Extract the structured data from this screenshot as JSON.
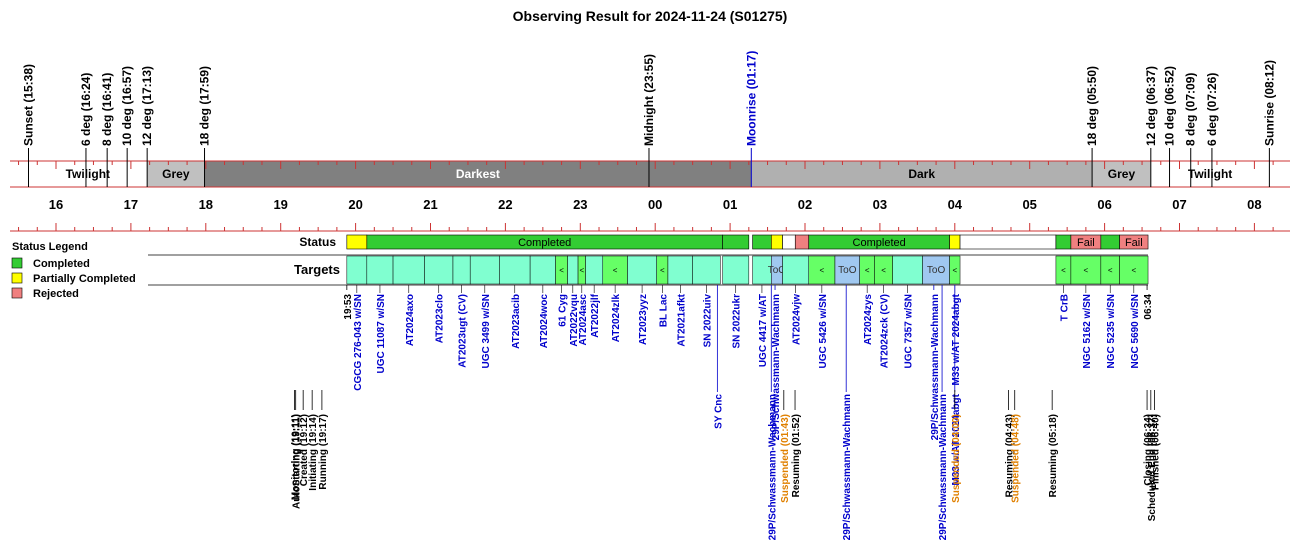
{
  "title": "Observing Result for 2024-11-24 (S01275)",
  "colors": {
    "completed": "#33cc33",
    "partial": "#ffff00",
    "rejected": "#f08080",
    "target_completed": "#66ff66",
    "target_ok": "#80ffd0",
    "too": "#a0c8f0",
    "twilight_band": "#ffffff",
    "grey_band": "#c0c0c0",
    "darkest_band": "#808080",
    "dark_band": "#b0b0b0",
    "axis_red": "#cc3333",
    "event_blue": "#0000cc",
    "suspended_orange": "#e08000"
  },
  "legend": {
    "title": "Status Legend",
    "items": [
      {
        "label": "Completed",
        "color": "#33cc33"
      },
      {
        "label": "Partially Completed",
        "color": "#ffff00"
      },
      {
        "label": "Rejected",
        "color": "#f08080"
      }
    ]
  },
  "row_labels": {
    "status": "Status",
    "targets": "Targets"
  },
  "chart_data": {
    "type": "timeline",
    "time_axis": {
      "start": 15.5,
      "end": 8.25,
      "ticks": [
        "16",
        "17",
        "18",
        "19",
        "20",
        "21",
        "22",
        "23",
        "00",
        "01",
        "02",
        "03",
        "04",
        "05",
        "06",
        "07",
        "08"
      ]
    },
    "top_markers": [
      {
        "label": "Sunset (15:38)",
        "t": 15.633,
        "color": "#000000"
      },
      {
        "label": "6 deg (16:24)",
        "t": 16.4,
        "color": "#000000"
      },
      {
        "label": "8 deg (16:41)",
        "t": 16.683,
        "color": "#000000"
      },
      {
        "label": "10 deg (16:57)",
        "t": 16.95,
        "color": "#000000"
      },
      {
        "label": "12 deg (17:13)",
        "t": 17.217,
        "color": "#000000"
      },
      {
        "label": "18 deg (17:59)",
        "t": 17.983,
        "color": "#000000"
      },
      {
        "label": "Midnight (23:55)",
        "t": 23.917,
        "color": "#000000"
      },
      {
        "label": "Moonrise (01:17)",
        "t": 25.283,
        "color": "#0000cc"
      },
      {
        "label": "18 deg (05:50)",
        "t": 29.833,
        "color": "#000000"
      },
      {
        "label": "12 deg (06:37)",
        "t": 30.617,
        "color": "#000000"
      },
      {
        "label": "10 deg (06:52)",
        "t": 30.867,
        "color": "#000000"
      },
      {
        "label": "8 deg (07:09)",
        "t": 31.15,
        "color": "#000000"
      },
      {
        "label": "6 deg (07:26)",
        "t": 31.433,
        "color": "#000000"
      },
      {
        "label": "Sunrise (08:12)",
        "t": 32.2,
        "color": "#000000"
      }
    ],
    "bands": [
      {
        "label": "Twilight",
        "t0": 15.633,
        "t1": 17.217,
        "kind": "twilight"
      },
      {
        "label": "Grey",
        "t0": 17.217,
        "t1": 17.983,
        "kind": "grey"
      },
      {
        "label": "Darkest",
        "t0": 17.983,
        "t1": 25.283,
        "kind": "darkest"
      },
      {
        "label": "Dark",
        "t0": 25.283,
        "t1": 29.833,
        "kind": "dark"
      },
      {
        "label": "Grey",
        "t0": 29.833,
        "t1": 30.617,
        "kind": "grey"
      },
      {
        "label": "Twilight",
        "t0": 30.617,
        "t1": 32.2,
        "kind": "twilight"
      }
    ],
    "status_segments": [
      {
        "t0": 19.883,
        "t1": 20.15,
        "status": "partial",
        "label": ""
      },
      {
        "t0": 20.15,
        "t1": 24.9,
        "status": "completed",
        "label": "Completed"
      },
      {
        "t0": 24.9,
        "t1": 25.25,
        "status": "completed",
        "label": ""
      },
      {
        "t0": 25.3,
        "t1": 25.55,
        "status": "completed",
        "label": ""
      },
      {
        "t0": 25.55,
        "t1": 25.7,
        "status": "partial",
        "label": ""
      },
      {
        "t0": 25.7,
        "t1": 25.87,
        "status": "empty",
        "label": ""
      },
      {
        "t0": 25.87,
        "t1": 26.05,
        "status": "rejected",
        "label": ""
      },
      {
        "t0": 26.05,
        "t1": 27.93,
        "status": "completed",
        "label": "Completed"
      },
      {
        "t0": 27.93,
        "t1": 28.07,
        "status": "partial",
        "label": ""
      },
      {
        "t0": 28.07,
        "t1": 29.35,
        "status": "empty",
        "label": ""
      },
      {
        "t0": 29.35,
        "t1": 29.55,
        "status": "completed",
        "label": ""
      },
      {
        "t0": 29.55,
        "t1": 29.95,
        "status": "rejected",
        "label": "Fail"
      },
      {
        "t0": 29.95,
        "t1": 30.2,
        "status": "completed",
        "label": ""
      },
      {
        "t0": 30.2,
        "t1": 30.58,
        "status": "rejected",
        "label": "Fail"
      }
    ],
    "targets": [
      {
        "name": "CGCG 276-043 w/SN",
        "t0": 19.883,
        "t1": 20.15,
        "kind": "ok",
        "mark": ""
      },
      {
        "name": "UGC 11087 w/SN",
        "t0": 20.15,
        "t1": 20.5,
        "kind": "ok",
        "mark": ""
      },
      {
        "name": "AT2024axo",
        "t0": 20.5,
        "t1": 20.92,
        "kind": "ok",
        "mark": ""
      },
      {
        "name": "AT2023clo",
        "t0": 20.92,
        "t1": 21.3,
        "kind": "ok",
        "mark": ""
      },
      {
        "name": "AT2023ugt (CV)",
        "t0": 21.3,
        "t1": 21.53,
        "kind": "ok",
        "mark": ""
      },
      {
        "name": "UGC 3499 w/SN",
        "t0": 21.53,
        "t1": 21.92,
        "kind": "ok",
        "mark": ""
      },
      {
        "name": "AT2023acib",
        "t0": 21.92,
        "t1": 22.33,
        "kind": "ok",
        "mark": ""
      },
      {
        "name": "AT2024woc",
        "t0": 22.33,
        "t1": 22.67,
        "kind": "ok",
        "mark": ""
      },
      {
        "name": "61 Cyg",
        "t0": 22.67,
        "t1": 22.83,
        "kind": "completed",
        "mark": "<"
      },
      {
        "name": "AT2022vqu",
        "t0": 22.83,
        "t1": 22.97,
        "kind": "ok",
        "mark": ""
      },
      {
        "name": "AT2024asc",
        "t0": 22.97,
        "t1": 23.07,
        "kind": "completed",
        "mark": "<"
      },
      {
        "name": "AT2022jlf",
        "t0": 23.07,
        "t1": 23.3,
        "kind": "ok",
        "mark": ""
      },
      {
        "name": "AT2024zlk",
        "t0": 23.3,
        "t1": 23.63,
        "kind": "completed",
        "mark": "<"
      },
      {
        "name": "AT2023yyz",
        "t0": 23.63,
        "t1": 24.02,
        "kind": "ok",
        "mark": ""
      },
      {
        "name": "BL Lac",
        "t0": 24.02,
        "t1": 24.17,
        "kind": "completed",
        "mark": "<"
      },
      {
        "name": "AT2021afkt",
        "t0": 24.17,
        "t1": 24.5,
        "kind": "ok",
        "mark": ""
      },
      {
        "name": "SN 2022uiv",
        "t0": 24.5,
        "t1": 24.87,
        "kind": "ok",
        "mark": ""
      },
      {
        "name": "SN 2022ukr",
        "t0": 24.9,
        "t1": 25.25,
        "kind": "ok",
        "mark": ""
      },
      {
        "name": "UGC 4417 w/AT",
        "t0": 25.3,
        "t1": 25.55,
        "kind": "ok",
        "mark": ""
      },
      {
        "name": "ToO",
        "t0": 25.55,
        "t1": 25.7,
        "kind": "too",
        "mark": "ToO"
      },
      {
        "name": "AT2024vjw",
        "t0": 25.7,
        "t1": 26.05,
        "kind": "ok",
        "mark": ""
      },
      {
        "name": "UGC 5426 w/SN",
        "t0": 26.05,
        "t1": 26.4,
        "kind": "completed",
        "mark": "<"
      },
      {
        "name": "ToO",
        "t0": 26.4,
        "t1": 26.73,
        "kind": "too",
        "mark": "ToO"
      },
      {
        "name": "AT2024zys",
        "t0": 26.73,
        "t1": 26.93,
        "kind": "completed",
        "mark": "<"
      },
      {
        "name": "AT2024zck (CV)",
        "t0": 26.93,
        "t1": 27.17,
        "kind": "completed",
        "mark": "<"
      },
      {
        "name": "UGC 7357 w/SN",
        "t0": 27.17,
        "t1": 27.57,
        "kind": "ok",
        "mark": ""
      },
      {
        "name": "ToO",
        "t0": 27.57,
        "t1": 27.93,
        "kind": "too",
        "mark": "ToO"
      },
      {
        "name": "M33 w/AT 2024abgt",
        "t0": 27.93,
        "t1": 28.07,
        "kind": "completed",
        "mark": "<"
      },
      {
        "name": "T CrB",
        "t0": 29.35,
        "t1": 29.55,
        "kind": "completed",
        "mark": "<"
      },
      {
        "name": "NGC 5162 w/SN",
        "t0": 29.55,
        "t1": 29.95,
        "kind": "completed",
        "mark": "<"
      },
      {
        "name": "NGC 5235 w/SN",
        "t0": 29.95,
        "t1": 30.2,
        "kind": "completed",
        "mark": "<"
      },
      {
        "name": "NGC 5690 w/SN",
        "t0": 30.2,
        "t1": 30.58,
        "kind": "completed",
        "mark": "<"
      }
    ],
    "below_labels": [
      {
        "label": "19:53",
        "t": 19.883,
        "color": "#000000",
        "level": "upper"
      },
      {
        "label": "06:34",
        "t": 30.567,
        "color": "#000000",
        "level": "upper"
      },
      {
        "label": "SY Cnc",
        "t": 24.83,
        "color": "#0000cc",
        "level": "lower"
      },
      {
        "label": "29P/Schwassmann-Wachmann",
        "t": 25.6,
        "color": "#0000cc",
        "level": "upper"
      },
      {
        "label": "29P/Schwassmann-Wachmann",
        "t": 26.55,
        "color": "#0000cc",
        "level": "lower"
      },
      {
        "label": "29P/Schwassmann-Wachmann",
        "t": 27.72,
        "color": "#0000cc",
        "level": "upper"
      },
      {
        "label": "29P/Schwassmann-Wachmann",
        "t": 25.55,
        "color": "#0000cc",
        "level": "lower"
      },
      {
        "label": "29P/Schwassmann-Wachmann",
        "t": 27.83,
        "color": "#0000cc",
        "level": "lower"
      },
      {
        "label": "M33 w/AT 2024abgt",
        "t": 28.0,
        "color": "#0000cc",
        "level": "lower"
      }
    ],
    "events": [
      {
        "label": "Monitoring (19:11)",
        "t": 19.183,
        "color": "#000000"
      },
      {
        "label": "AutoStarting (19:11)",
        "t": 19.2,
        "color": "#000000"
      },
      {
        "label": "Created (19:12)",
        "t": 19.3,
        "color": "#000000"
      },
      {
        "label": "Initiating (19:14)",
        "t": 19.42,
        "color": "#000000"
      },
      {
        "label": "Running (19:17)",
        "t": 19.55,
        "color": "#000000"
      },
      {
        "label": "Suspended (01:43)",
        "t": 25.717,
        "color": "#e08000"
      },
      {
        "label": "Resuming (01:52)",
        "t": 25.867,
        "color": "#000000"
      },
      {
        "label": "Suspended (04:00)",
        "t": 28.0,
        "color": "#e08000"
      },
      {
        "label": "Resuming (04:43)",
        "t": 28.717,
        "color": "#000000"
      },
      {
        "label": "Suspended (04:48)",
        "t": 28.8,
        "color": "#e08000"
      },
      {
        "label": "Resuming (05:18)",
        "t": 29.3,
        "color": "#000000"
      },
      {
        "label": "Closing (06:34)",
        "t": 30.567,
        "color": "#000000"
      },
      {
        "label": "Scheduled End (06:37)",
        "t": 30.617,
        "color": "#000000"
      },
      {
        "label": "Finished (06:40)",
        "t": 30.667,
        "color": "#000000"
      }
    ]
  }
}
